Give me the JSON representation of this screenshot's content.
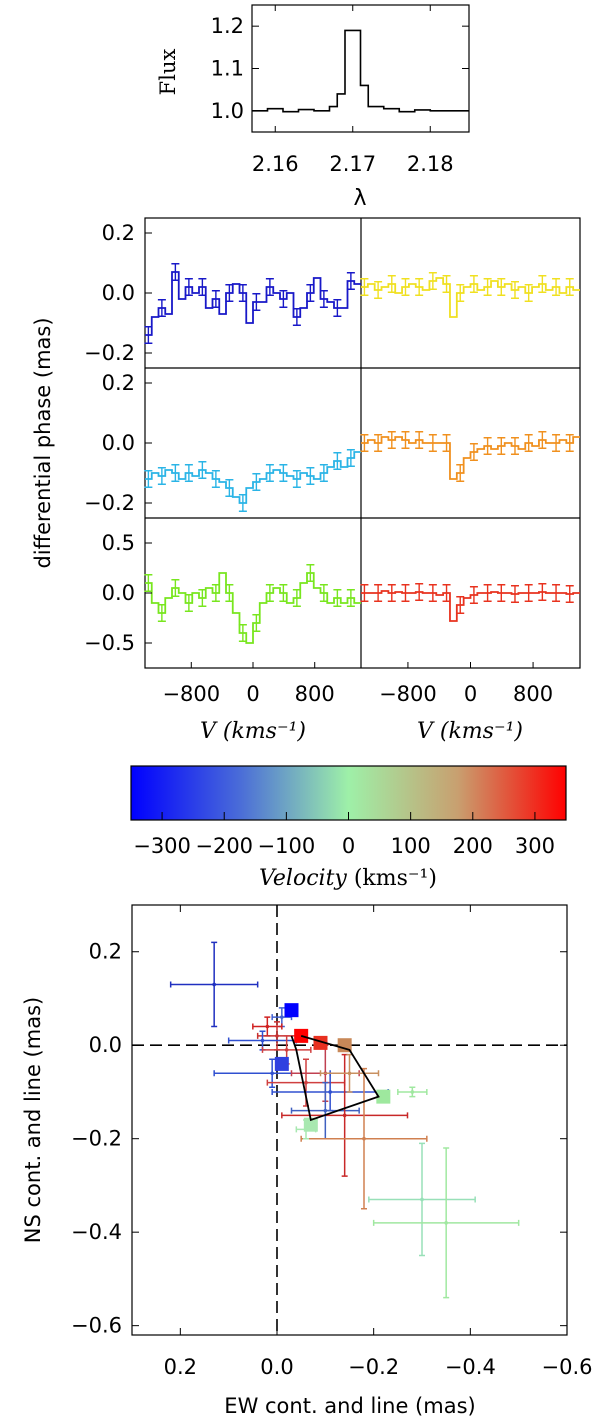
{
  "chart_data": [
    {
      "id": "flux",
      "type": "line",
      "ylabel": "Flux",
      "xlabel": "λ",
      "xlim": [
        2.157,
        2.185
      ],
      "ylim": [
        0.95,
        1.25
      ],
      "xticks": [
        "2.16",
        "2.17",
        "2.18"
      ],
      "yticks": [
        "1.0",
        "1.1",
        "1.2"
      ],
      "x": [
        2.157,
        2.159,
        2.161,
        2.163,
        2.165,
        2.167,
        2.168,
        2.169,
        2.17,
        2.171,
        2.172,
        2.174,
        2.176,
        2.178,
        2.18,
        2.182,
        2.185
      ],
      "y": [
        1.0,
        1.005,
        0.998,
        1.003,
        1.0,
        1.01,
        1.04,
        1.19,
        1.19,
        1.06,
        1.01,
        1.005,
        0.998,
        1.002,
        1.0,
        1.0,
        1.0
      ]
    },
    {
      "id": "phase",
      "type": "line",
      "ylabel": "differential phase (mas)",
      "xlabel": "V (kms⁻¹)",
      "xlim": [
        -1400,
        1400
      ],
      "xticks": [
        "-800",
        "0",
        "800"
      ],
      "panels": [
        {
          "color": "#1818c8",
          "ylim": [
            -0.25,
            0.25
          ],
          "yticks": [
            "0.2",
            "0.0",
            "-0.2"
          ],
          "values": [
            -0.14,
            -0.08,
            -0.05,
            -0.07,
            0.07,
            -0.02,
            0.02,
            0.0,
            0.02,
            -0.05,
            -0.02,
            -0.07,
            0.0,
            0.03,
            0.0,
            -0.1,
            -0.03,
            -0.03,
            0.02,
            0.0,
            -0.02,
            0.0,
            -0.08,
            -0.05,
            0.0,
            0.05,
            -0.02,
            -0.03,
            -0.05,
            -0.05,
            0.04,
            0.03
          ]
        },
        {
          "color": "#f0e020",
          "ylim": [
            -0.25,
            0.25
          ],
          "yticks": [],
          "values": [
            0.02,
            0.03,
            0.01,
            0.02,
            0.03,
            0.0,
            0.02,
            0.03,
            0.02,
            0.01,
            0.04,
            0.05,
            0.03,
            -0.08,
            0.0,
            0.02,
            0.03,
            0.01,
            0.02,
            0.04,
            0.02,
            0.03,
            0.01,
            0.02,
            0.0,
            0.02,
            0.03,
            0.01,
            0.02,
            0.0,
            0.02,
            0.01
          ]
        },
        {
          "color": "#2ab4e6",
          "ylim": [
            -0.25,
            0.25
          ],
          "yticks": [
            "0.2",
            "0.0",
            "-0.2"
          ],
          "values": [
            -0.12,
            -0.1,
            -0.11,
            -0.09,
            -0.1,
            -0.12,
            -0.1,
            -0.11,
            -0.09,
            -0.1,
            -0.12,
            -0.13,
            -0.15,
            -0.18,
            -0.2,
            -0.15,
            -0.13,
            -0.12,
            -0.1,
            -0.09,
            -0.1,
            -0.11,
            -0.12,
            -0.1,
            -0.11,
            -0.12,
            -0.1,
            -0.08,
            -0.06,
            -0.08,
            -0.05,
            -0.03
          ]
        },
        {
          "color": "#f0901e",
          "ylim": [
            -0.25,
            0.25
          ],
          "yticks": [],
          "values": [
            0.0,
            0.01,
            0.0,
            0.02,
            0.01,
            0.02,
            0.01,
            0.0,
            0.01,
            0.0,
            0.0,
            0.0,
            0.0,
            -0.12,
            -0.1,
            -0.05,
            -0.03,
            -0.02,
            -0.01,
            -0.02,
            -0.01,
            0.0,
            -0.01,
            -0.02,
            0.0,
            -0.01,
            0.01,
            0.0,
            0.0,
            0.01,
            0.0,
            0.02
          ]
        },
        {
          "color": "#78e61e",
          "ylim": [
            -0.75,
            0.75
          ],
          "yticks": [
            "0.5",
            "0.0",
            "-0.5"
          ],
          "values": [
            0.1,
            -0.1,
            -0.2,
            -0.05,
            0.05,
            0.0,
            -0.1,
            0.0,
            -0.05,
            0.05,
            0.0,
            0.2,
            0.0,
            -0.2,
            -0.4,
            -0.5,
            -0.3,
            -0.1,
            0.0,
            0.05,
            0.0,
            -0.1,
            -0.05,
            0.1,
            0.2,
            0.05,
            0.0,
            -0.1,
            -0.05,
            -0.1,
            -0.05,
            -0.1
          ]
        },
        {
          "color": "#e8321e",
          "ylim": [
            -0.75,
            0.75
          ],
          "yticks": [],
          "values": [
            0.0,
            0.0,
            0.0,
            0.02,
            0.0,
            0.01,
            0.0,
            0.0,
            0.01,
            0.0,
            0.0,
            -0.02,
            0.0,
            -0.28,
            -0.12,
            -0.05,
            -0.02,
            0.0,
            0.0,
            0.01,
            0.0,
            0.0,
            -0.01,
            0.0,
            0.0,
            0.0,
            0.01,
            0.0,
            0.0,
            0.0,
            -0.01,
            0.0
          ]
        }
      ]
    },
    {
      "id": "colorbar",
      "type": "heatmap",
      "xlabel": "Velocity (kms⁻¹)",
      "xlabel_main": "Velocity",
      "xlabel_unit": "(kms⁻¹)",
      "xlim": [
        -350,
        350
      ],
      "xticks": [
        -300,
        -200,
        -100,
        0,
        100,
        200,
        300
      ],
      "stops": [
        [
          0.0,
          "#0000ff"
        ],
        [
          0.25,
          "#4a6cd8"
        ],
        [
          0.5,
          "#9ef0a8"
        ],
        [
          0.75,
          "#c8a070"
        ],
        [
          1.0,
          "#ff0000"
        ]
      ]
    },
    {
      "id": "astrometry",
      "type": "scatter",
      "xlabel": "EW cont. and line (mas)",
      "ylabel": "NS cont. and line (mas)",
      "xlim": [
        0.3,
        -0.6
      ],
      "ylim": [
        -0.62,
        0.3
      ],
      "xticks": [
        "0.2",
        "0.0",
        "-0.2",
        "-0.4",
        "-0.6"
      ],
      "yticks": [
        "0.2",
        "0.0",
        "-0.2",
        "-0.4",
        "-0.6"
      ],
      "polygon": [
        [
          -0.03,
          0.02
        ],
        [
          -0.04,
          -0.01
        ],
        [
          -0.07,
          -0.16
        ],
        [
          -0.21,
          -0.11
        ],
        [
          -0.15,
          -0.01
        ],
        [
          -0.05,
          0.02
        ]
      ],
      "squares": [
        {
          "x": -0.03,
          "y": 0.075,
          "color": "#0000ff"
        },
        {
          "x": -0.01,
          "y": -0.04,
          "color": "#3040e0"
        },
        {
          "x": -0.05,
          "y": 0.02,
          "color": "#ff0000"
        },
        {
          "x": -0.09,
          "y": 0.005,
          "color": "#e83020"
        },
        {
          "x": -0.14,
          "y": 0.0,
          "color": "#c88858"
        },
        {
          "x": -0.22,
          "y": -0.11,
          "color": "#9ee89e"
        },
        {
          "x": -0.07,
          "y": -0.17,
          "color": "#a8e8b0"
        }
      ],
      "errorpoints": [
        {
          "x": 0.13,
          "y": 0.13,
          "ex": 0.09,
          "ey": 0.09,
          "color": "#2030c0"
        },
        {
          "x": -0.01,
          "y": 0.06,
          "ex": 0.02,
          "ey": 0.02,
          "color": "#4060d0"
        },
        {
          "x": 0.02,
          "y": 0.04,
          "ex": 0.03,
          "ey": 0.02,
          "color": "#d02020"
        },
        {
          "x": 0.0,
          "y": 0.02,
          "ex": 0.04,
          "ey": 0.03,
          "color": "#c83030"
        },
        {
          "x": 0.03,
          "y": 0.01,
          "ex": 0.07,
          "ey": 0.02,
          "color": "#3050d0"
        },
        {
          "x": -0.02,
          "y": -0.01,
          "ex": 0.05,
          "ey": 0.03,
          "color": "#d04040"
        },
        {
          "x": 0.01,
          "y": -0.06,
          "ex": 0.12,
          "ey": 0.03,
          "color": "#3050d0"
        },
        {
          "x": -0.06,
          "y": -0.08,
          "ex": 0.08,
          "ey": 0.05,
          "color": "#d04040"
        },
        {
          "x": -0.1,
          "y": -0.06,
          "ex": 0.07,
          "ey": 0.06,
          "color": "#c04050"
        },
        {
          "x": -0.11,
          "y": -0.1,
          "ex": 0.12,
          "ey": 0.04,
          "color": "#3050d0"
        },
        {
          "x": -0.1,
          "y": -0.14,
          "ex": 0.07,
          "ey": 0.06,
          "color": "#4060c0"
        },
        {
          "x": -0.14,
          "y": -0.15,
          "ex": 0.13,
          "ey": 0.13,
          "color": "#c82828"
        },
        {
          "x": -0.18,
          "y": -0.2,
          "ex": 0.13,
          "ey": 0.15,
          "color": "#d08050"
        },
        {
          "x": -0.15,
          "y": -0.06,
          "ex": 0.06,
          "ey": 0.04,
          "color": "#c89060"
        },
        {
          "x": -0.28,
          "y": -0.1,
          "ex": 0.03,
          "ey": 0.01,
          "color": "#a0e8a0"
        },
        {
          "x": -0.3,
          "y": -0.33,
          "ex": 0.11,
          "ey": 0.12,
          "color": "#98e0b8"
        },
        {
          "x": -0.35,
          "y": -0.38,
          "ex": 0.15,
          "ey": 0.16,
          "color": "#a0e8a0"
        },
        {
          "x": -0.06,
          "y": -0.18,
          "ex": 0.02,
          "ey": 0.02,
          "color": "#a8e8b0"
        }
      ]
    }
  ]
}
